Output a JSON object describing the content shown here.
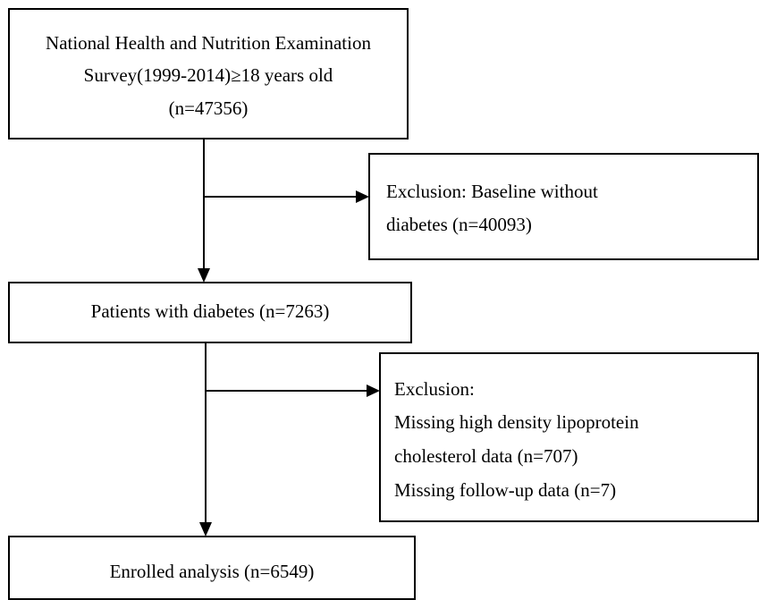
{
  "nodes": [
    {
      "lines": [
        "National Health and Nutrition Examination",
        "Survey(1999-2014)≥18 years old",
        "(n=47356)"
      ]
    },
    {
      "lines": [
        "Exclusion: Baseline without",
        "diabetes (n=40093)"
      ]
    },
    {
      "lines": [
        "Patients with diabetes (n=7263)"
      ]
    },
    {
      "lines": [
        "Exclusion:",
        "Missing high density lipoprotein",
        "cholesterol data (n=707)",
        "Missing follow-up data (n=7)"
      ]
    },
    {
      "lines": [
        "Enrolled analysis (n=6549)"
      ]
    }
  ]
}
